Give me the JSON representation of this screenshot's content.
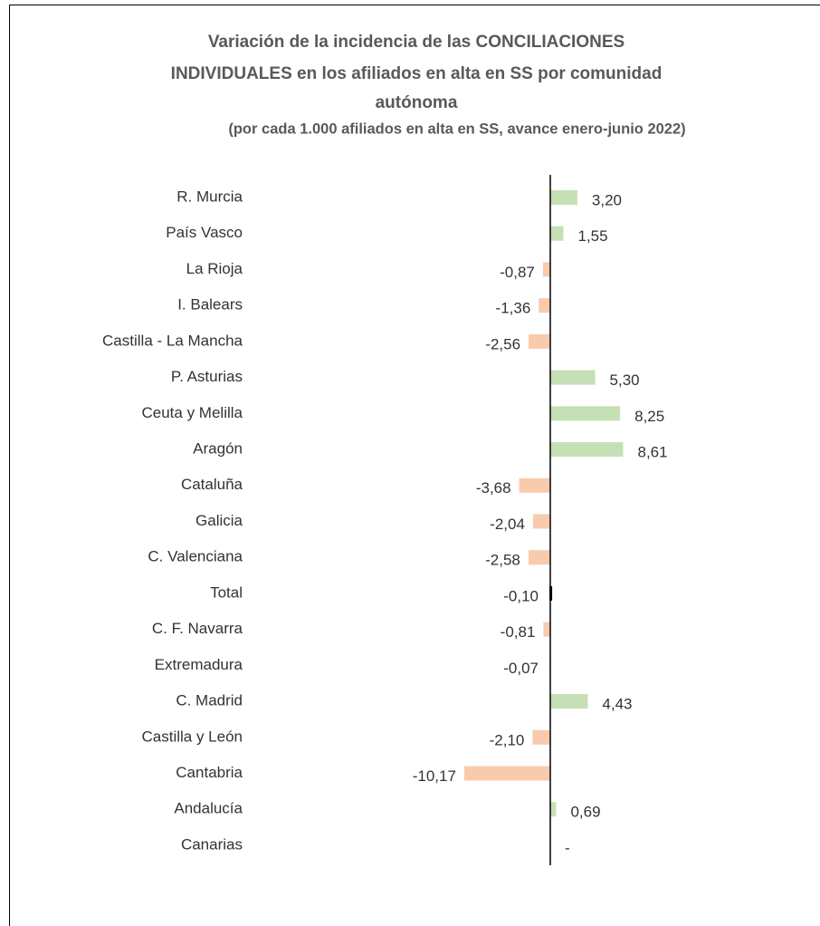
{
  "chart_data": {
    "type": "bar",
    "orientation": "horizontal",
    "title": [
      "Variación de la incidencia de las CONCILIACIONES",
      "INDIVIDUALES  en los afiliados  en alta en SS por comunidad",
      "autónoma"
    ],
    "subtitle": "(por cada 1.000 afiliados en alta en SS, avance enero-junio 2022)",
    "categories": [
      "R. Murcia",
      "País Vasco",
      "La Rioja",
      "I. Balears",
      "Castilla - La Mancha",
      "P. Asturias",
      "Ceuta y Melilla",
      "Aragón",
      "Cataluña",
      "Galicia",
      "C. Valenciana",
      "Total",
      "C. F. Navarra",
      "Extremadura",
      "C. Madrid",
      "Castilla y León",
      "Cantabria",
      "Andalucía",
      "Canarias"
    ],
    "values": [
      3.2,
      1.55,
      -0.87,
      -1.36,
      -2.56,
      5.3,
      8.25,
      8.61,
      -3.68,
      -2.04,
      -2.58,
      -0.1,
      -0.81,
      -0.07,
      4.43,
      -2.1,
      -10.17,
      0.69,
      0
    ],
    "value_labels": [
      "3,20",
      "1,55",
      "-0,87",
      "-1,36",
      "-2,56",
      "5,30",
      "8,25",
      "8,61",
      "-3,68",
      "-2,04",
      "-2,58",
      "-0,10",
      "-0,81",
      "-0,07",
      "4,43",
      "-2,10",
      "-10,17",
      "0,69",
      "-"
    ],
    "colors": [
      "#c5e0b4",
      "#c5e0b4",
      "#f8cbad",
      "#f8cbad",
      "#f8cbad",
      "#c5e0b4",
      "#c5e0b4",
      "#c5e0b4",
      "#f8cbad",
      "#f8cbad",
      "#f8cbad",
      "#000000",
      "#f8cbad",
      "#f8cbad",
      "#c5e0b4",
      "#f8cbad",
      "#f8cbad",
      "#c5e0b4",
      "#c5e0b4"
    ]
  }
}
